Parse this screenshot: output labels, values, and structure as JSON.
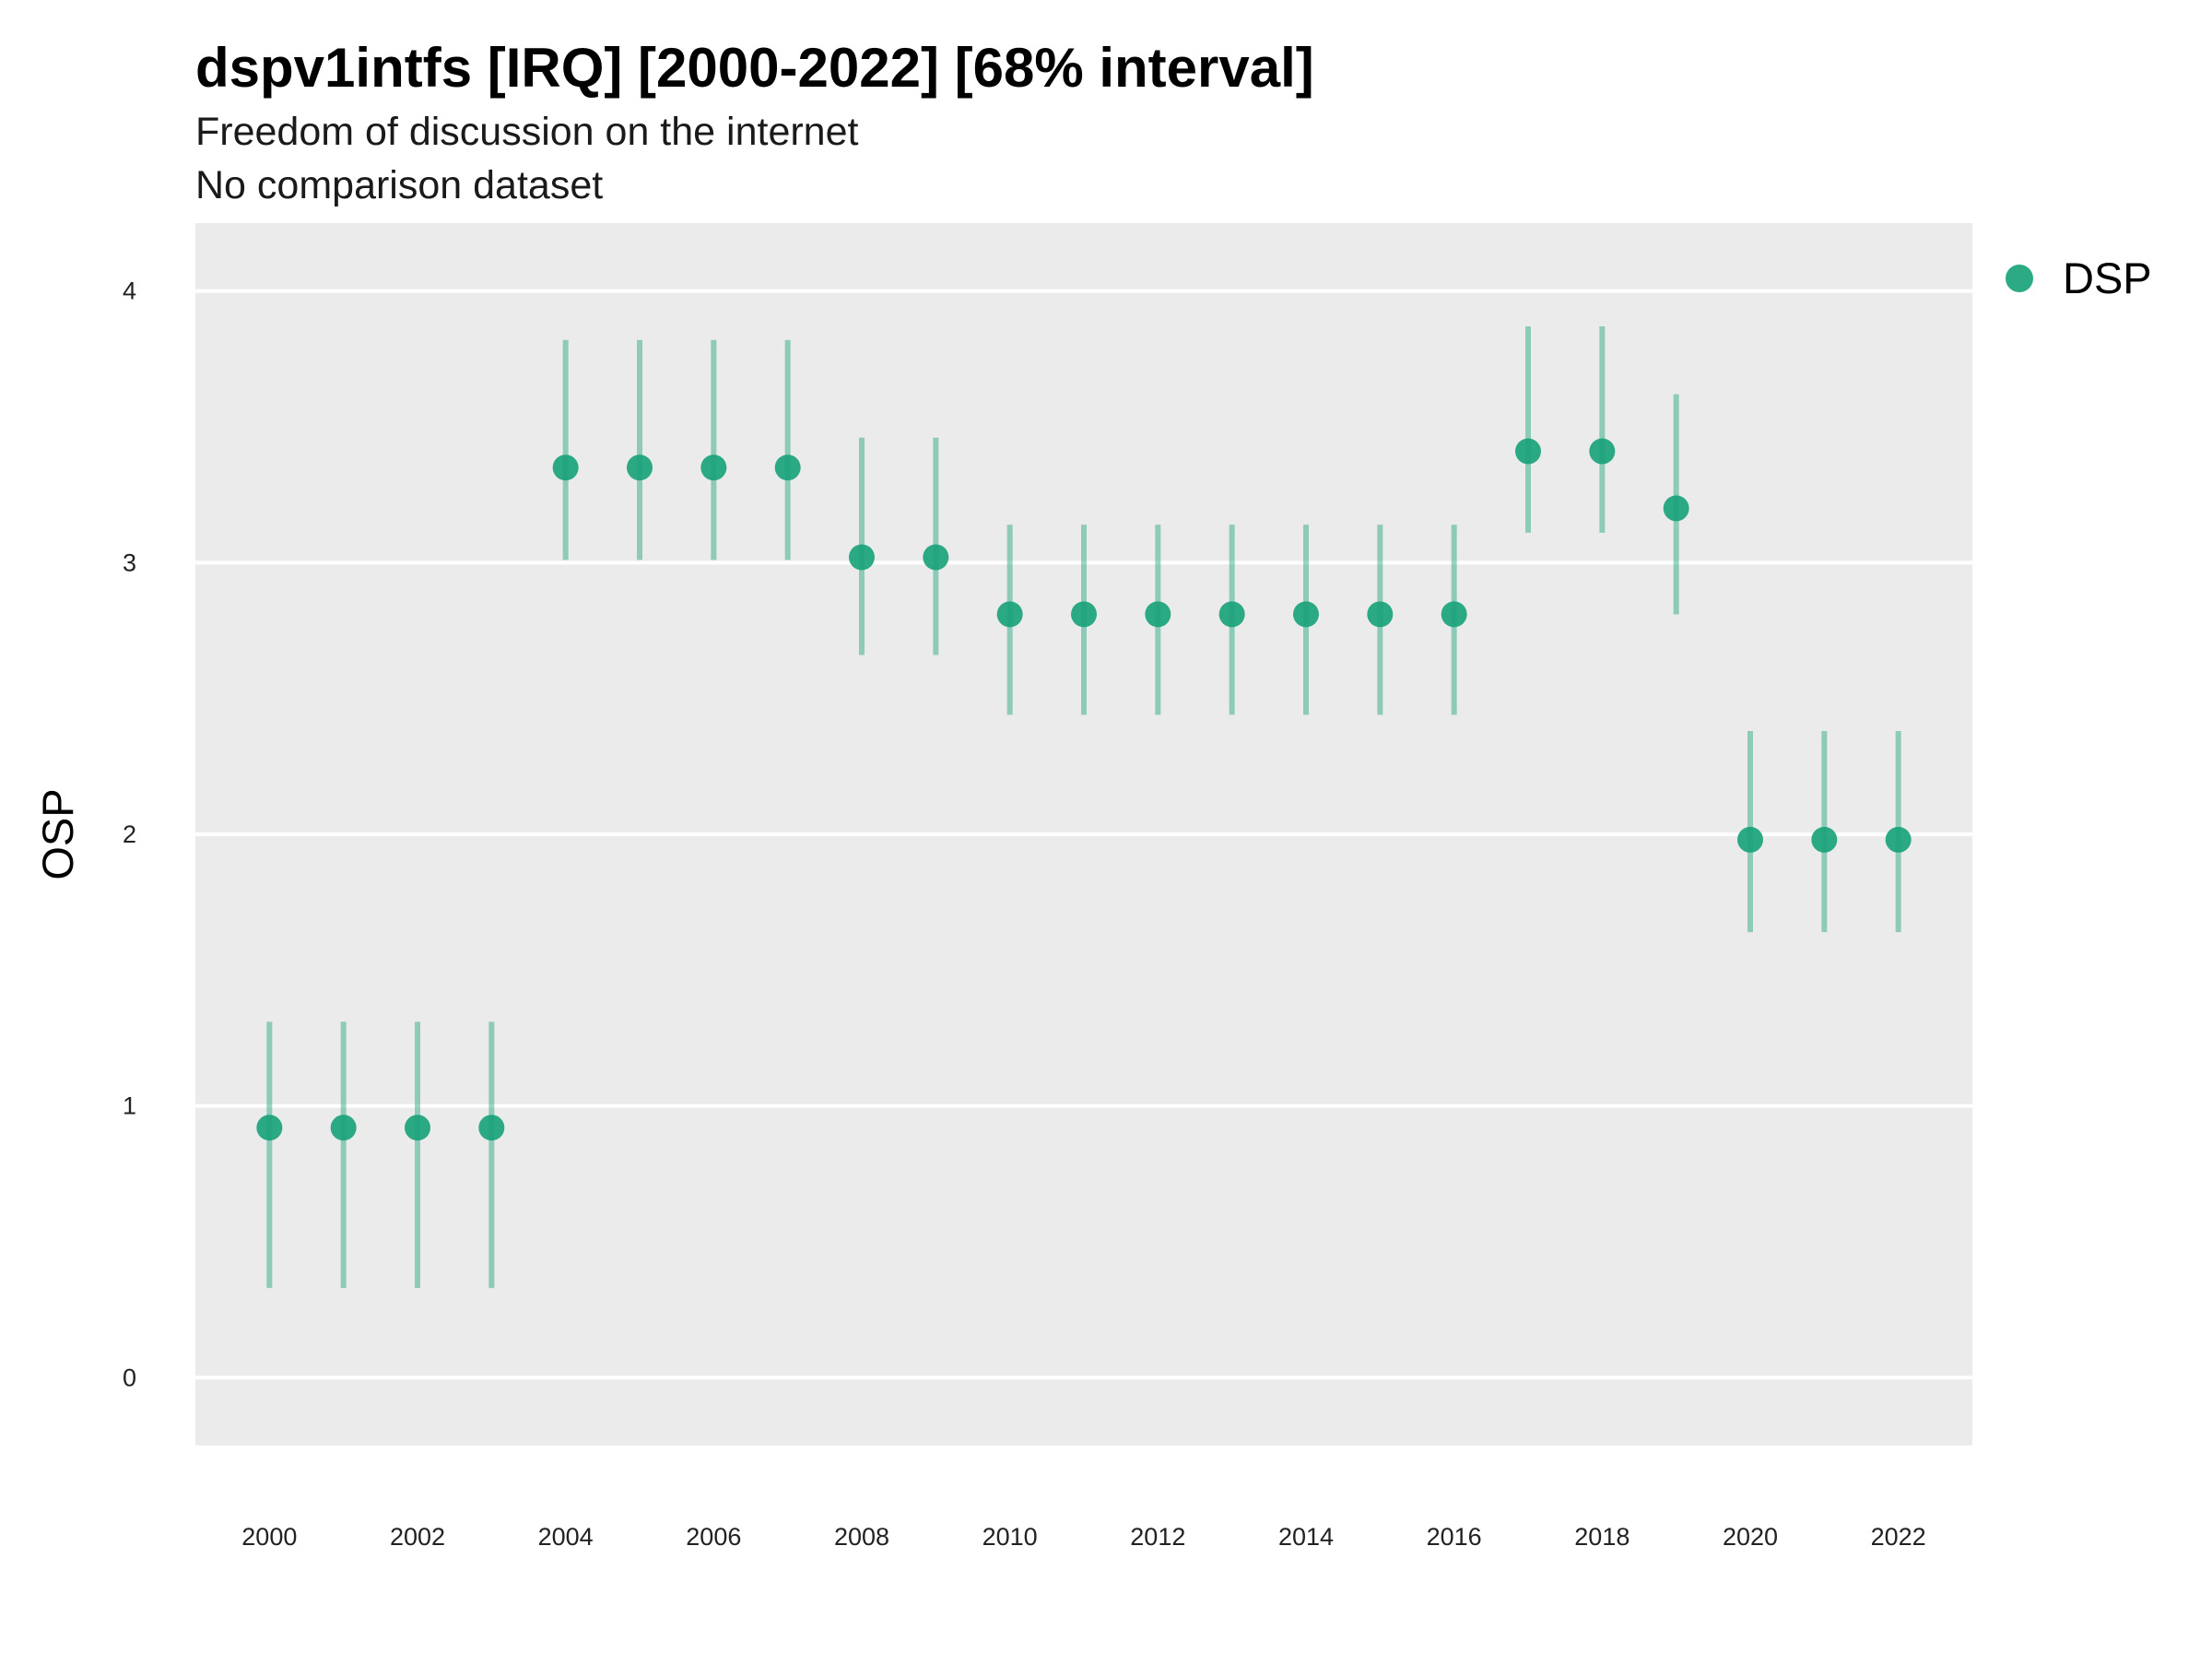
{
  "chart_data": {
    "type": "scatter",
    "title": "dspv1intfs [IRQ] [2000-2022] [68% interval]",
    "subtitle": "Freedom of discussion on the internet",
    "subtitle2": "No comparison dataset",
    "xlabel": "",
    "ylabel": "OSP",
    "xlim": [
      1999,
      2023
    ],
    "ylim": [
      -0.25,
      4.25
    ],
    "x_ticks": [
      2000,
      2002,
      2004,
      2006,
      2008,
      2010,
      2012,
      2014,
      2016,
      2018,
      2020,
      2022
    ],
    "y_ticks": [
      0,
      1,
      2,
      3,
      4
    ],
    "grid": true,
    "legend_position": "right",
    "colors": {
      "panel_background": "#ebebeb",
      "grid": "#ffffff",
      "point": "#1aa37a",
      "interval": "#1aa37a"
    },
    "series": [
      {
        "name": "DSP",
        "color": "#1aa37a",
        "x": [
          2000,
          2001,
          2002,
          2003,
          2004,
          2005,
          2006,
          2007,
          2008,
          2009,
          2010,
          2011,
          2012,
          2013,
          2014,
          2015,
          2016,
          2017,
          2018,
          2019,
          2020,
          2021,
          2022
        ],
        "y": [
          0.92,
          0.92,
          0.92,
          0.92,
          3.35,
          3.35,
          3.35,
          3.35,
          3.02,
          3.02,
          2.81,
          2.81,
          2.81,
          2.81,
          2.81,
          2.81,
          2.81,
          3.41,
          3.41,
          3.2,
          1.98,
          1.98,
          1.98
        ],
        "lower": [
          0.33,
          0.33,
          0.33,
          0.33,
          3.01,
          3.01,
          3.01,
          3.01,
          2.66,
          2.66,
          2.44,
          2.44,
          2.44,
          2.44,
          2.44,
          2.44,
          2.44,
          3.11,
          3.11,
          2.81,
          1.64,
          1.64,
          1.64
        ],
        "upper": [
          1.31,
          1.31,
          1.31,
          1.31,
          3.82,
          3.82,
          3.82,
          3.82,
          3.46,
          3.46,
          3.14,
          3.14,
          3.14,
          3.14,
          3.14,
          3.14,
          3.14,
          3.87,
          3.87,
          3.62,
          2.38,
          2.38,
          2.38
        ]
      }
    ]
  }
}
